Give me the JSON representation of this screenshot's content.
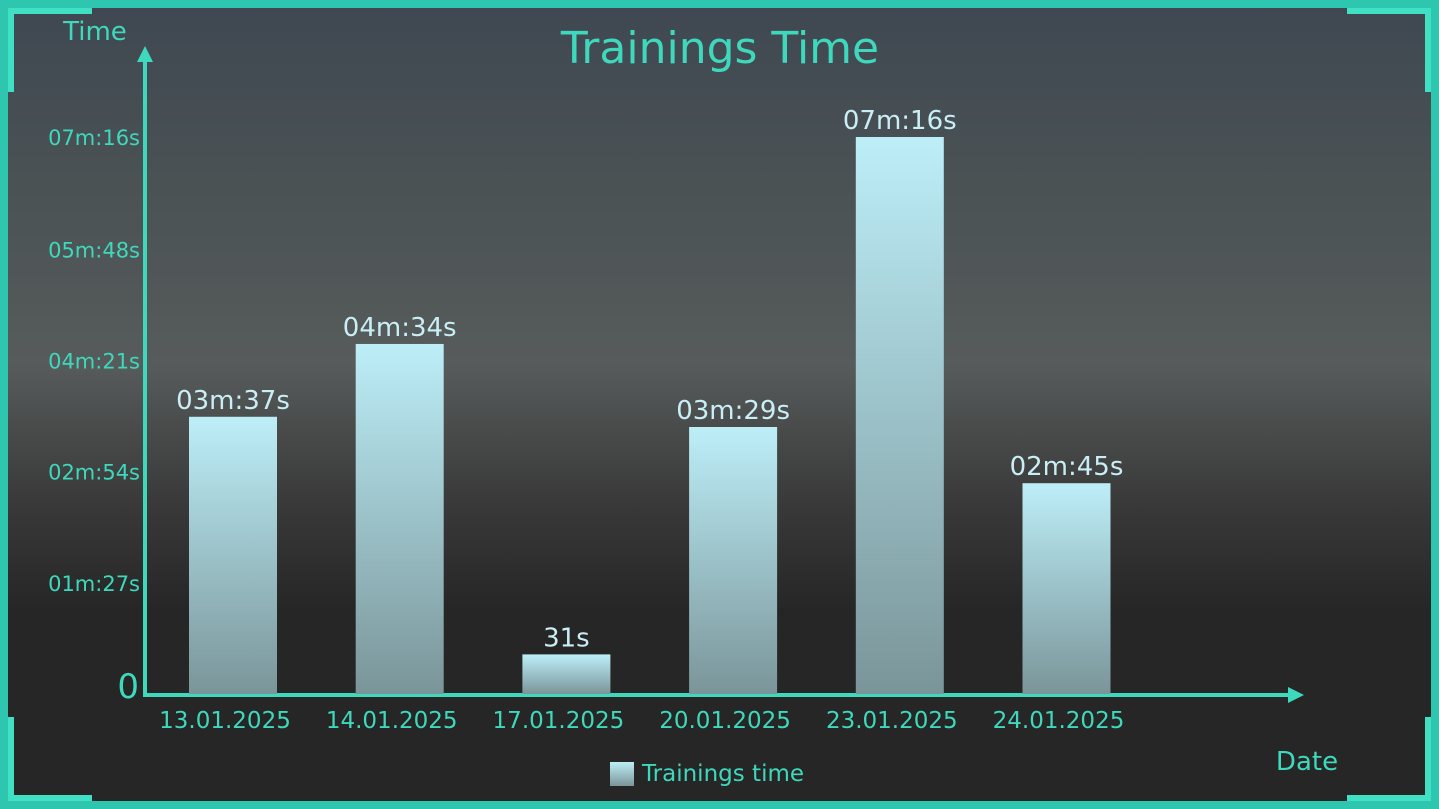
{
  "chart_data": {
    "type": "bar",
    "title": "Trainings Time",
    "xlabel": "Date",
    "ylabel": "Time",
    "categories": [
      "13.01.2025",
      "14.01.2025",
      "17.01.2025",
      "20.01.2025",
      "23.01.2025",
      "24.01.2025"
    ],
    "series": [
      {
        "name": "Trainings time",
        "values": [
          217,
          274,
          31,
          209,
          436,
          165
        ],
        "labels": [
          "03m:37s",
          "04m:34s",
          "31s",
          "03m:29s",
          "07m:16s",
          "02m:45s"
        ]
      }
    ],
    "yticks": [
      0,
      87,
      174,
      261,
      348,
      436
    ],
    "ytick_labels": [
      "0",
      "01m:27s",
      "02m:54s",
      "04m:21s",
      "05m:48s",
      "07m:16s"
    ],
    "ylim": [
      0,
      436
    ],
    "legend": "bottom-center",
    "grid": false,
    "colors": {
      "accent": "#3ed9bd",
      "bar_top": "#bdeef8",
      "bar_bottom": "#7a9599",
      "frame": "#2fc6b0"
    }
  }
}
